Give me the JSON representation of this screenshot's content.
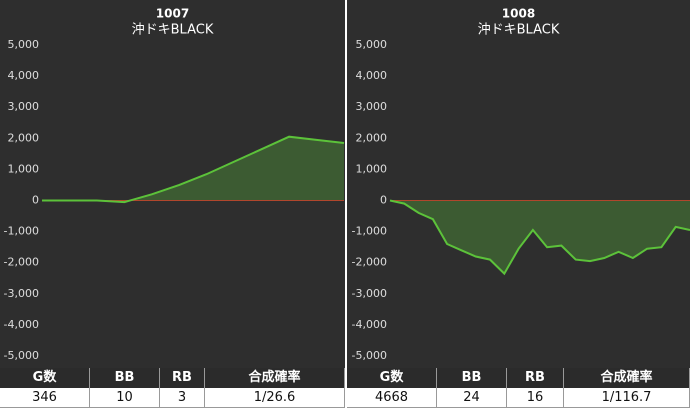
{
  "chart_data": [
    {
      "type": "line",
      "title": "1007",
      "subtitle": "沖ドキBLACK",
      "color": "#5cc23a",
      "values": [
        0,
        0,
        0,
        -50,
        200,
        500,
        850,
        1250,
        1650,
        2050,
        1950,
        1850
      ],
      "ylim": [
        -5000,
        5000
      ],
      "yticks": [
        {
          "value": 5000,
          "label": "5,000"
        },
        {
          "value": 4000,
          "label": "4,000"
        },
        {
          "value": 3000,
          "label": "3,000"
        },
        {
          "value": 2000,
          "label": "2,000"
        },
        {
          "value": 1000,
          "label": "1,000"
        },
        0,
        {
          "value": -1000,
          "label": "-1,000"
        },
        {
          "value": -2000,
          "label": "-2,000"
        },
        {
          "value": -3000,
          "label": "-3,000"
        },
        {
          "value": -4000,
          "label": "-4,000"
        },
        {
          "value": -5000,
          "label": "-5,000"
        }
      ]
    },
    {
      "type": "line",
      "title": "1008",
      "subtitle": "沖ドキBLACK",
      "color": "#5cc23a",
      "values": [
        0,
        -100,
        -400,
        -600,
        -1400,
        -1600,
        -1800,
        -1900,
        -2350,
        -1550,
        -950,
        -1500,
        -1450,
        -1900,
        -1950,
        -1850,
        -1650,
        -1850,
        -1550,
        -1500,
        -850,
        -950
      ],
      "ylim": [
        -5000,
        5000
      ],
      "yticks": [
        {
          "value": 5000,
          "label": "5,000"
        },
        {
          "value": 4000,
          "label": "4,000"
        },
        {
          "value": 3000,
          "label": "3,000"
        },
        {
          "value": 2000,
          "label": "2,000"
        },
        {
          "value": 1000,
          "label": "1,000"
        },
        0,
        {
          "value": -1000,
          "label": "-1,000"
        },
        {
          "value": -2000,
          "label": "-2,000"
        },
        {
          "value": -3000,
          "label": "-3,000"
        },
        {
          "value": -4000,
          "label": "-4,000"
        },
        {
          "value": -5000,
          "label": "-5,000"
        }
      ]
    }
  ],
  "tables": [
    {
      "header": [
        "G数",
        "BB",
        "RB",
        "合成確率"
      ],
      "row": [
        346,
        10,
        3,
        "1/26.6"
      ]
    },
    {
      "header": [
        "G数",
        "BB",
        "RB",
        "合成確率"
      ],
      "row": [
        4668,
        24,
        16,
        "1/116.7"
      ]
    }
  ]
}
